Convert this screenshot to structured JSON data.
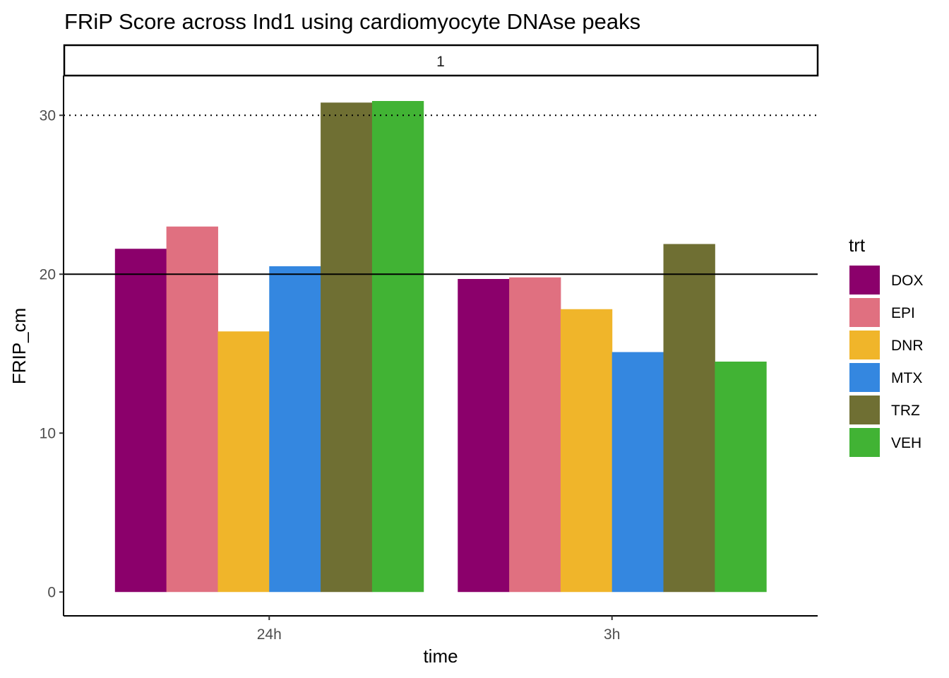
{
  "chart_data": {
    "type": "bar",
    "title": "FRiP Score across Ind1 using cardiomyocyte DNAse peaks",
    "facet_label": "1",
    "xlabel": "time",
    "ylabel": "FRIP_cm",
    "categories": [
      "24h",
      "3h"
    ],
    "ylim": [
      -1.5,
      32.5
    ],
    "yticks": [
      0,
      10,
      20,
      30
    ],
    "hlines": [
      {
        "y": 20,
        "style": "solid"
      },
      {
        "y": 30,
        "style": "dotted"
      }
    ],
    "legend_title": "trt",
    "legend_position": "right",
    "grid": false,
    "series": [
      {
        "name": "DOX",
        "color": "#8B006B",
        "values": [
          21.6,
          19.7
        ]
      },
      {
        "name": "EPI",
        "color": "#E07080",
        "values": [
          23.0,
          19.8
        ]
      },
      {
        "name": "DNR",
        "color": "#F0B52A",
        "values": [
          16.4,
          17.8
        ]
      },
      {
        "name": "MTX",
        "color": "#3487E0",
        "values": [
          20.5,
          15.1
        ]
      },
      {
        "name": "TRZ",
        "color": "#6F6F33",
        "values": [
          30.8,
          21.9
        ]
      },
      {
        "name": "VEH",
        "color": "#41B334",
        "values": [
          30.9,
          14.5
        ]
      }
    ]
  }
}
